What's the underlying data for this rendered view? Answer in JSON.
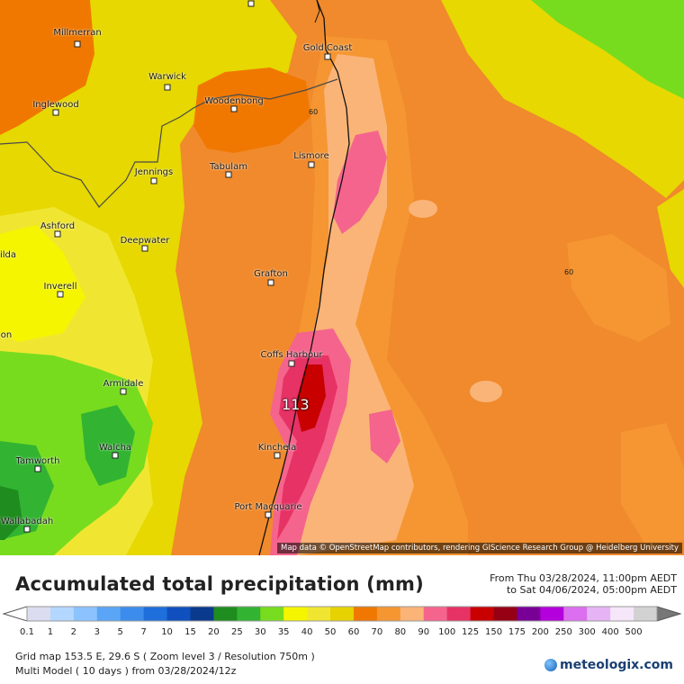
{
  "map": {
    "cities": [
      {
        "id": "millmerran",
        "name": "Millmerran"
      },
      {
        "id": "gold-coast",
        "name": "Gold Coast"
      },
      {
        "id": "warwick",
        "name": "Warwick"
      },
      {
        "id": "inglewood",
        "name": "Inglewood"
      },
      {
        "id": "woodenbong",
        "name": "Woodenbong"
      },
      {
        "id": "lismore",
        "name": "Lismore"
      },
      {
        "id": "tabulam",
        "name": "Tabulam"
      },
      {
        "id": "jennings",
        "name": "Jennings"
      },
      {
        "id": "ashford",
        "name": "Ashford"
      },
      {
        "id": "deepwater",
        "name": "Deepwater"
      },
      {
        "id": "ilda",
        "name": "ilda"
      },
      {
        "id": "grafton",
        "name": "Grafton"
      },
      {
        "id": "inverell",
        "name": "Inverell"
      },
      {
        "id": "on",
        "name": "on"
      },
      {
        "id": "coffs-harbour",
        "name": "Coffs Harbour"
      },
      {
        "id": "armidale",
        "name": "Armidale"
      },
      {
        "id": "walcha",
        "name": "Walcha"
      },
      {
        "id": "kinchela",
        "name": "Kinchela"
      },
      {
        "id": "tamworth",
        "name": "Tamworth"
      },
      {
        "id": "port-macquarie",
        "name": "Port Macquarie"
      },
      {
        "id": "wallabadah",
        "name": "Wallabadah"
      }
    ],
    "contour_labels": [
      "60",
      "60"
    ],
    "max_value": "113",
    "attribution": "Map data © OpenStreetMap contributors, rendering GIScience Research Group @ Heidelberg University"
  },
  "legend": {
    "title": "Accumulated total precipitation (mm)",
    "period_from": "From Thu 03/28/2024, 11:00pm AEDT",
    "period_to": "to Sat 04/06/2024, 05:00pm AEDT",
    "scale": [
      {
        "label": "0.1",
        "color": "#dcdcf0"
      },
      {
        "label": "1",
        "color": "#b4d7ff"
      },
      {
        "label": "2",
        "color": "#8cc3ff"
      },
      {
        "label": "3",
        "color": "#5aa5f5"
      },
      {
        "label": "5",
        "color": "#3c8ceb"
      },
      {
        "label": "7",
        "color": "#1e6edc"
      },
      {
        "label": "10",
        "color": "#0f50be"
      },
      {
        "label": "15",
        "color": "#0a3a8c"
      },
      {
        "label": "20",
        "color": "#1e8c1e"
      },
      {
        "label": "25",
        "color": "#32b432"
      },
      {
        "label": "30",
        "color": "#78dc1e"
      },
      {
        "label": "35",
        "color": "#f5f500"
      },
      {
        "label": "40",
        "color": "#f0e632"
      },
      {
        "label": "50",
        "color": "#e6d200"
      },
      {
        "label": "60",
        "color": "#f07800"
      },
      {
        "label": "70",
        "color": "#f59632"
      },
      {
        "label": "80",
        "color": "#fab478"
      },
      {
        "label": "90",
        "color": "#f5648c"
      },
      {
        "label": "100",
        "color": "#e63264"
      },
      {
        "label": "125",
        "color": "#c80000"
      },
      {
        "label": "150",
        "color": "#960014"
      },
      {
        "label": "175",
        "color": "#780096"
      },
      {
        "label": "200",
        "color": "#b400dc"
      },
      {
        "label": "250",
        "color": "#dc6ef0"
      },
      {
        "label": "300",
        "color": "#e6b4f5"
      },
      {
        "label": "400",
        "color": "#f5e6fa"
      },
      {
        "label": "500",
        "color": "#d2d2d2"
      }
    ]
  },
  "footer": {
    "grid_info": "Grid map 153.5 E, 29.6 S ( Zoom level 3 / Resolution 750m )",
    "model_info": "Multi Model ( 10 days ) from  03/28/2024/12z",
    "brand": "meteologix.com"
  }
}
